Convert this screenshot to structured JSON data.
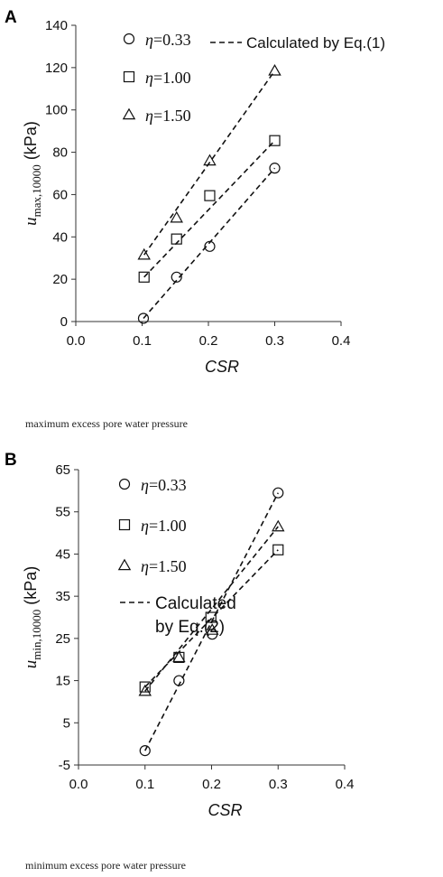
{
  "chart_data": [
    {
      "type": "scatter",
      "panel_label": "A",
      "caption": "maximum excess pore water pressure",
      "xlabel": "CSR",
      "ylabel_main": "u",
      "ylabel_sub": "max,10000",
      "ylabel_unit": "(kPa)",
      "xlim": [
        0.0,
        0.4
      ],
      "ylim": [
        0,
        140
      ],
      "xticks": [
        0.0,
        0.1,
        0.2,
        0.3,
        0.4
      ],
      "xtick_labels": [
        "0.0",
        "0.1",
        "0.2",
        "0.3",
        "0.4"
      ],
      "yticks": [
        0,
        20,
        40,
        60,
        80,
        100,
        120,
        140
      ],
      "ytick_labels": [
        "0",
        "20",
        "40",
        "60",
        "80",
        "100",
        "120",
        "140"
      ],
      "grid": false,
      "legend_position": "top",
      "fit_label": "Calculated by Eq.(1)",
      "series": [
        {
          "name": "η=0.33",
          "marker": "circle",
          "x": [
            0.102,
            0.152,
            0.202,
            0.3
          ],
          "y": [
            1.5,
            21,
            35.5,
            72.5
          ],
          "fit": [
            [
              0.102,
              1.5
            ],
            [
              0.3,
              72.5
            ]
          ]
        },
        {
          "name": "η=1.00",
          "marker": "square",
          "x": [
            0.103,
            0.152,
            0.202,
            0.3
          ],
          "y": [
            21,
            39,
            59.5,
            85.5
          ],
          "fit": [
            [
              0.103,
              21
            ],
            [
              0.3,
              85.5
            ]
          ]
        },
        {
          "name": "η=1.50",
          "marker": "triangle",
          "x": [
            0.103,
            0.152,
            0.202,
            0.3
          ],
          "y": [
            31.5,
            49,
            76,
            118.5
          ],
          "fit": [
            [
              0.103,
              31.5
            ],
            [
              0.3,
              118.5
            ]
          ]
        }
      ]
    },
    {
      "type": "scatter",
      "panel_label": "B",
      "caption": "minimum excess pore water pressure",
      "xlabel": "CSR",
      "ylabel_main": "u",
      "ylabel_sub": "min,10000",
      "ylabel_unit": "(kPa)",
      "xlim": [
        0.0,
        0.4
      ],
      "ylim": [
        -5,
        65
      ],
      "xticks": [
        0.0,
        0.1,
        0.2,
        0.3,
        0.4
      ],
      "xtick_labels": [
        "0.0",
        "0.1",
        "0.2",
        "0.3",
        "0.4"
      ],
      "yticks": [
        -5,
        5,
        15,
        25,
        35,
        45,
        55,
        65
      ],
      "ytick_labels": [
        "-5",
        "5",
        "15",
        "25",
        "35",
        "45",
        "55",
        "65"
      ],
      "grid": false,
      "legend_position": "top",
      "fit_label_lines": [
        "Calculated",
        "by Eq.(2)"
      ],
      "series": [
        {
          "name": "η=0.33",
          "marker": "circle",
          "x": [
            0.1,
            0.151,
            0.201,
            0.3
          ],
          "y": [
            -1.6,
            15,
            26,
            59.5
          ],
          "fit": [
            [
              0.1,
              -1.6
            ],
            [
              0.3,
              59.5
            ]
          ]
        },
        {
          "name": "η=1.00",
          "marker": "square",
          "x": [
            0.1,
            0.151,
            0.199,
            0.3
          ],
          "y": [
            13.5,
            20.5,
            30,
            46
          ],
          "fit": [
            [
              0.1,
              13.5
            ],
            [
              0.3,
              46
            ]
          ]
        },
        {
          "name": "η=1.50",
          "marker": "triangle",
          "x": [
            0.1,
            0.151,
            0.201,
            0.3
          ],
          "y": [
            12.5,
            20.5,
            27,
            51.5
          ],
          "fit": [
            [
              0.1,
              12.5
            ],
            [
              0.3,
              51.5
            ]
          ]
        }
      ]
    }
  ]
}
